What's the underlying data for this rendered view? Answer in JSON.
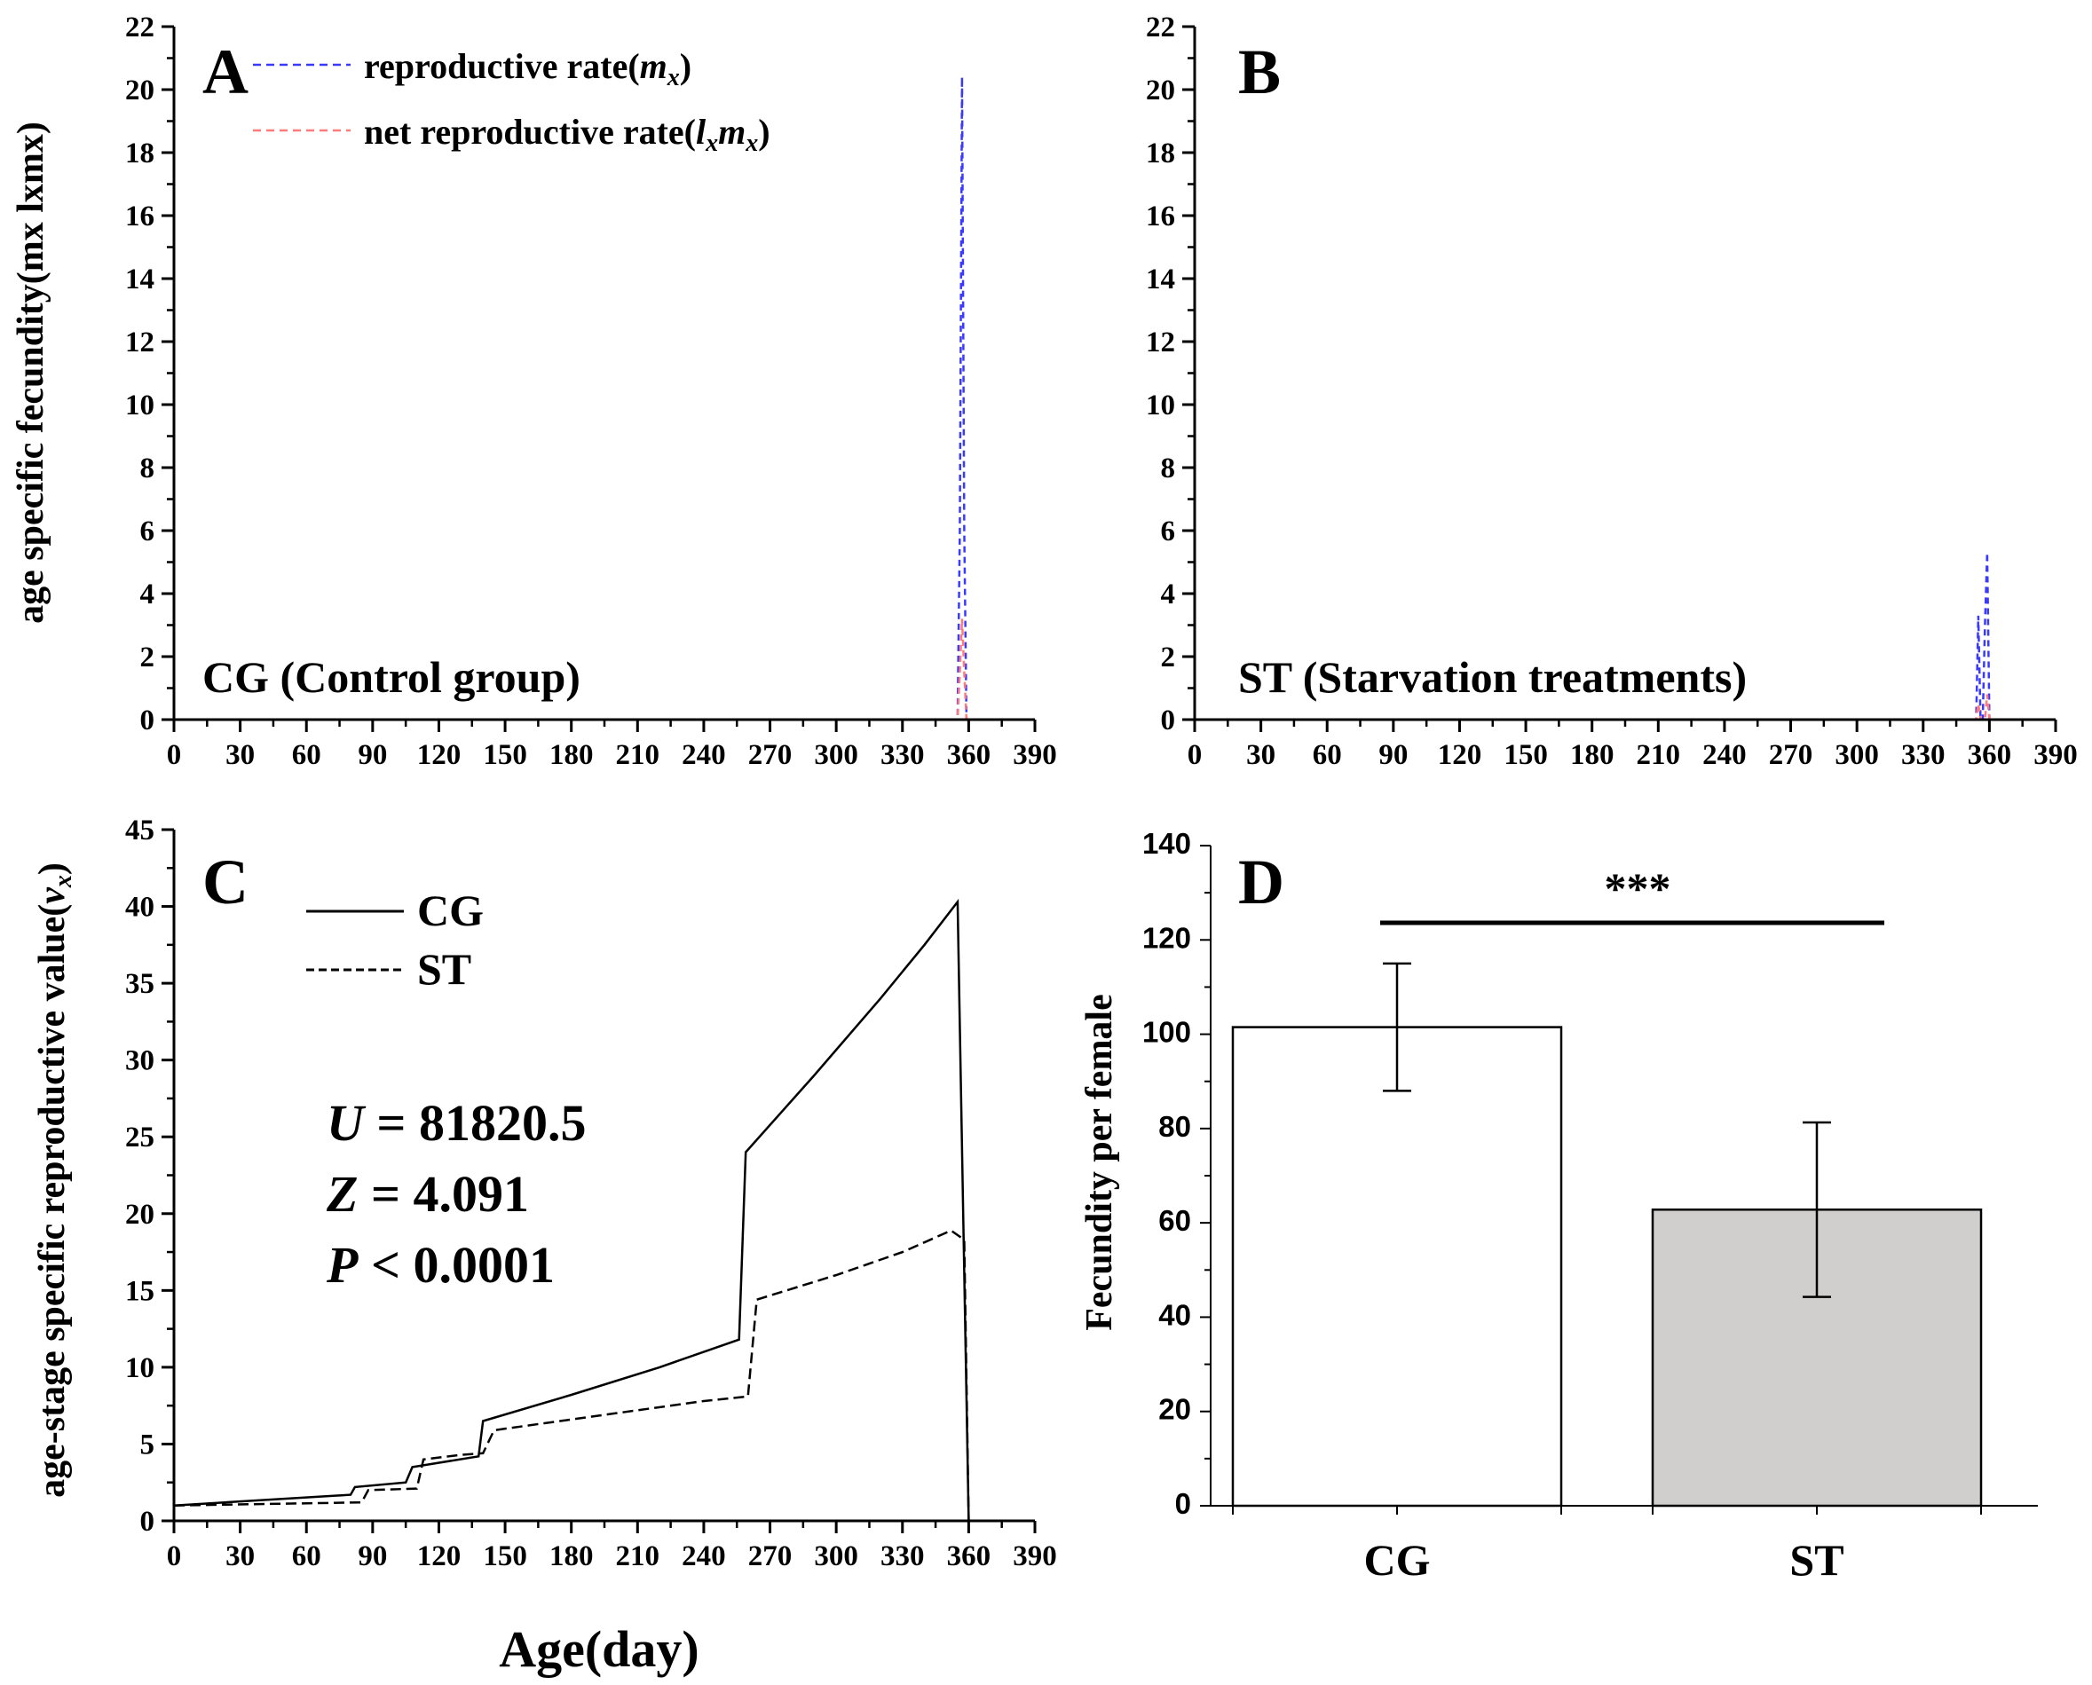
{
  "colors": {
    "blue_dash": "#3a3aff",
    "red_dash": "#ff7a7a",
    "line_black": "#000000",
    "bar_cg": "#ffffff",
    "bar_st": "#d0cfcd"
  },
  "chart_data": [
    {
      "id": "A",
      "type": "line",
      "panel_letter": "A",
      "group_label": "CG (Control group)",
      "ylabel": "age specific fecundity(mx   lxmx)",
      "xlabel": "",
      "xlim": [
        0,
        390
      ],
      "ylim": [
        0,
        22
      ],
      "xticks": [
        "0",
        "30",
        "60",
        "90",
        "120",
        "150",
        "180",
        "210",
        "240",
        "270",
        "300",
        "330",
        "360",
        "390"
      ],
      "yticks": [
        "0",
        "2",
        "4",
        "6",
        "8",
        "10",
        "12",
        "14",
        "16",
        "18",
        "20",
        "22"
      ],
      "legend": {
        "mx_prefix": "reproductive rate(",
        "mx_var": "m",
        "mx_sub": "x",
        "mx_suffix": ")",
        "lxmx_prefix": "net reproductive rate(",
        "lxmx_var1": "l",
        "lxmx_sub1": "x",
        "lxmx_var2": "m",
        "lxmx_sub2": "x",
        "lxmx_suffix": ")"
      },
      "series": [
        {
          "name": "reproductive rate(mx)",
          "color": "#3a3aff",
          "style": "dashed",
          "points": [
            [
              0,
              0
            ],
            [
              355,
              0
            ],
            [
              356,
              6
            ],
            [
              357,
              20.4
            ],
            [
              358,
              6
            ],
            [
              359,
              0
            ],
            [
              390,
              0
            ]
          ]
        },
        {
          "name": "net reproductive rate(lxmx)",
          "color": "#ff7a7a",
          "style": "dashed",
          "points": [
            [
              0,
              0
            ],
            [
              355,
              0
            ],
            [
              356,
              1.5
            ],
            [
              357,
              3.2
            ],
            [
              358,
              1.5
            ],
            [
              359,
              0
            ],
            [
              390,
              0
            ]
          ]
        }
      ]
    },
    {
      "id": "B",
      "type": "line",
      "panel_letter": "B",
      "group_label": "ST (Starvation treatments)",
      "ylabel": "",
      "xlabel": "",
      "xlim": [
        0,
        390
      ],
      "ylim": [
        0,
        22
      ],
      "xticks": [
        "0",
        "30",
        "60",
        "90",
        "120",
        "150",
        "180",
        "210",
        "240",
        "270",
        "300",
        "330",
        "360",
        "390"
      ],
      "yticks": [
        "0",
        "2",
        "4",
        "6",
        "8",
        "10",
        "12",
        "14",
        "16",
        "18",
        "20",
        "22"
      ],
      "series": [
        {
          "name": "reproductive rate(mx)",
          "color": "#3a3aff",
          "style": "dashed",
          "points": [
            [
              0,
              0
            ],
            [
              354,
              0
            ],
            [
              355,
              3.3
            ],
            [
              356,
              0
            ],
            [
              357,
              0
            ],
            [
              358,
              3
            ],
            [
              359,
              5.3
            ],
            [
              360,
              0
            ],
            [
              390,
              0
            ]
          ]
        },
        {
          "name": "net reproductive rate(lxmx)",
          "color": "#ff7a7a",
          "style": "dashed",
          "points": [
            [
              0,
              0
            ],
            [
              354,
              0
            ],
            [
              355,
              0.5
            ],
            [
              356,
              0
            ],
            [
              358,
              0
            ],
            [
              359,
              0.8
            ],
            [
              360,
              0
            ],
            [
              390,
              0
            ]
          ]
        }
      ]
    },
    {
      "id": "C",
      "type": "line",
      "panel_letter": "C",
      "ylabel_prefix": "age-stage specific reproductive value(",
      "ylabel_var": "v",
      "ylabel_sub": "x",
      "ylabel_suffix": ")",
      "xlabel": "Age(day)",
      "xlim": [
        0,
        390
      ],
      "ylim": [
        0,
        45
      ],
      "xticks": [
        "0",
        "30",
        "60",
        "90",
        "120",
        "150",
        "180",
        "210",
        "240",
        "270",
        "300",
        "330",
        "360",
        "390"
      ],
      "yticks": [
        "0",
        "5",
        "10",
        "15",
        "20",
        "25",
        "30",
        "35",
        "40",
        "45"
      ],
      "legend": {
        "cg": "CG",
        "st": "ST"
      },
      "stats": {
        "u_var": "U",
        "u_val": " = 81820.5",
        "z_var": "Z",
        "z_val": " = 4.091",
        "p_var": "P",
        "p_val": " < 0.0001"
      },
      "series": [
        {
          "name": "CG",
          "color": "#000000",
          "style": "solid",
          "points": [
            [
              0,
              1
            ],
            [
              80,
              1.7
            ],
            [
              82,
              2.2
            ],
            [
              105,
              2.5
            ],
            [
              108,
              3.5
            ],
            [
              138,
              4.2
            ],
            [
              140,
              6.5
            ],
            [
              180,
              8.2
            ],
            [
              220,
              10
            ],
            [
              256,
              11.8
            ],
            [
              259,
              24
            ],
            [
              290,
              29
            ],
            [
              320,
              34
            ],
            [
              340,
              37.5
            ],
            [
              355,
              40.3
            ],
            [
              360,
              0
            ]
          ]
        },
        {
          "name": "ST",
          "color": "#000000",
          "style": "dashed",
          "points": [
            [
              0,
              1
            ],
            [
              85,
              1.2
            ],
            [
              88,
              2
            ],
            [
              110,
              2.1
            ],
            [
              113,
              4
            ],
            [
              130,
              4.3
            ],
            [
              140,
              4.4
            ],
            [
              145,
              5.9
            ],
            [
              200,
              7
            ],
            [
              240,
              7.8
            ],
            [
              260,
              8.1
            ],
            [
              264,
              14.4
            ],
            [
              300,
              16
            ],
            [
              330,
              17.5
            ],
            [
              352,
              18.9
            ],
            [
              358,
              18.3
            ],
            [
              360,
              0
            ]
          ]
        }
      ]
    },
    {
      "id": "D",
      "type": "bar",
      "panel_letter": "D",
      "ylabel": "Fecundity per female",
      "categories": [
        "CG",
        "ST"
      ],
      "values": [
        101.5,
        62.8
      ],
      "errors": [
        13.5,
        18.5
      ],
      "ylim": [
        0,
        140
      ],
      "yticks": [
        "0",
        "20",
        "40",
        "60",
        "80",
        "100",
        "120",
        "140"
      ],
      "significance": "***"
    }
  ]
}
